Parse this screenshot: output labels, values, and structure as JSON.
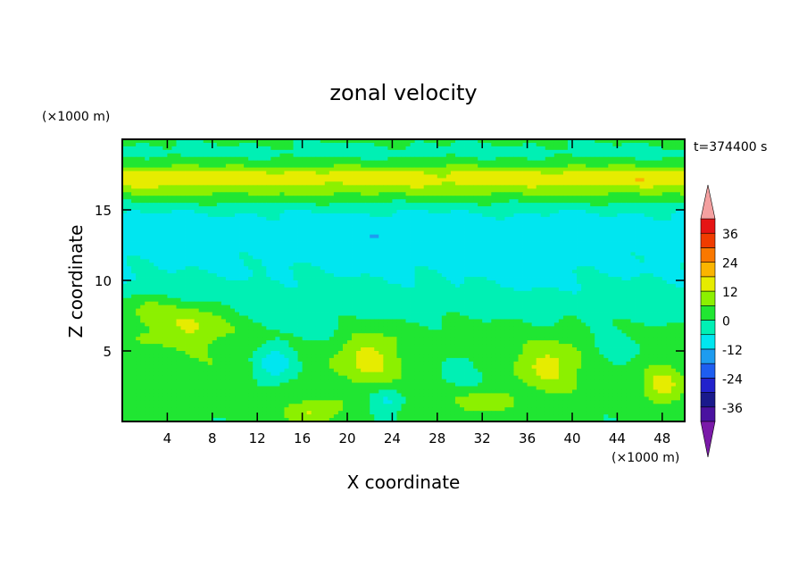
{
  "chart_data": {
    "type": "heatmap",
    "title": "zonal velocity",
    "xlabel": "X coordinate",
    "ylabel": "Z coordinate",
    "x_unit": "(×1000 m)",
    "y_unit": "(×1000 m)",
    "time_label": "t=374400 s",
    "xlim": [
      0,
      50
    ],
    "ylim": [
      0,
      20
    ],
    "x_ticks": [
      4,
      8,
      12,
      16,
      20,
      24,
      28,
      32,
      36,
      40,
      44,
      48
    ],
    "y_ticks": [
      5,
      10,
      15
    ],
    "colorbar": {
      "ticks": [
        36,
        24,
        12,
        0,
        -12,
        -24,
        -36
      ],
      "levels": [
        -42,
        -36,
        -30,
        -24,
        -18,
        -12,
        -6,
        0,
        6,
        12,
        18,
        24,
        30,
        36,
        42
      ],
      "colors": [
        "#7a1aa8",
        "#4a12a0",
        "#1a1a8c",
        "#2222cc",
        "#1e5ef0",
        "#1e9cf0",
        "#00e6f0",
        "#00f0b4",
        "#20e632",
        "#8cf000",
        "#e6ec00",
        "#fab400",
        "#fa7800",
        "#f03c00",
        "#e61414",
        "#f4a0a0"
      ]
    },
    "field_bands": [
      {
        "z": 0.0,
        "u": 1.0
      },
      {
        "z": 0.8,
        "u": 2.0
      },
      {
        "z": 2.0,
        "u": 4.0
      },
      {
        "z": 4.0,
        "u": 4.5
      },
      {
        "z": 6.0,
        "u": 3.0
      },
      {
        "z": 7.5,
        "u": -1.0
      },
      {
        "z": 9.0,
        "u": -4.0
      },
      {
        "z": 10.5,
        "u": -6.0
      },
      {
        "z": 12.0,
        "u": -7.5
      },
      {
        "z": 13.5,
        "u": -9.0
      },
      {
        "z": 14.8,
        "u": -6.0
      },
      {
        "z": 15.6,
        "u": 1.0
      },
      {
        "z": 16.3,
        "u": 8.0
      },
      {
        "z": 17.0,
        "u": 14.0
      },
      {
        "z": 17.6,
        "u": 13.0
      },
      {
        "z": 18.3,
        "u": 3.0
      },
      {
        "z": 19.0,
        "u": -2.0
      },
      {
        "z": 20.0,
        "u": 1.0
      }
    ],
    "features": [
      {
        "x": 6.0,
        "z": 7.0,
        "sx": 3.5,
        "sz": 1.5,
        "amp": 12
      },
      {
        "x": 2.0,
        "z": 8.0,
        "sx": 2.0,
        "sz": 1.2,
        "amp": 8
      },
      {
        "x": 13.5,
        "z": 4.0,
        "sx": 2.0,
        "sz": 1.5,
        "amp": -14
      },
      {
        "x": 17.0,
        "z": 0.6,
        "sx": 2.5,
        "sz": 0.8,
        "amp": 11
      },
      {
        "x": 17.0,
        "z": 6.5,
        "sx": 2.0,
        "sz": 1.0,
        "amp": -6
      },
      {
        "x": 22.0,
        "z": 4.5,
        "sx": 2.5,
        "sz": 1.8,
        "amp": 10
      },
      {
        "x": 23.5,
        "z": 1.5,
        "sx": 1.5,
        "sz": 1.0,
        "amp": -10
      },
      {
        "x": 30.0,
        "z": 3.5,
        "sx": 2.5,
        "sz": 1.5,
        "amp": -7
      },
      {
        "x": 32.0,
        "z": 1.3,
        "sx": 2.5,
        "sz": 0.8,
        "amp": 8
      },
      {
        "x": 38.0,
        "z": 4.0,
        "sx": 2.5,
        "sz": 1.5,
        "amp": 10
      },
      {
        "x": 44.0,
        "z": 5.0,
        "sx": 2.5,
        "sz": 1.5,
        "amp": -7
      },
      {
        "x": 48.0,
        "z": 2.5,
        "sx": 1.5,
        "sz": 1.2,
        "amp": 11
      },
      {
        "x": 4.0,
        "z": 17.2,
        "sx": 3.0,
        "sz": 0.5,
        "amp": 4
      },
      {
        "x": 46.0,
        "z": 17.2,
        "sx": 3.0,
        "sz": 0.5,
        "amp": 3
      },
      {
        "x": 25.0,
        "z": 12.5,
        "sx": 6.0,
        "sz": 1.5,
        "amp": -3
      },
      {
        "x": 35.0,
        "z": 10.0,
        "sx": 5.0,
        "sz": 1.2,
        "amp": -2
      }
    ]
  }
}
